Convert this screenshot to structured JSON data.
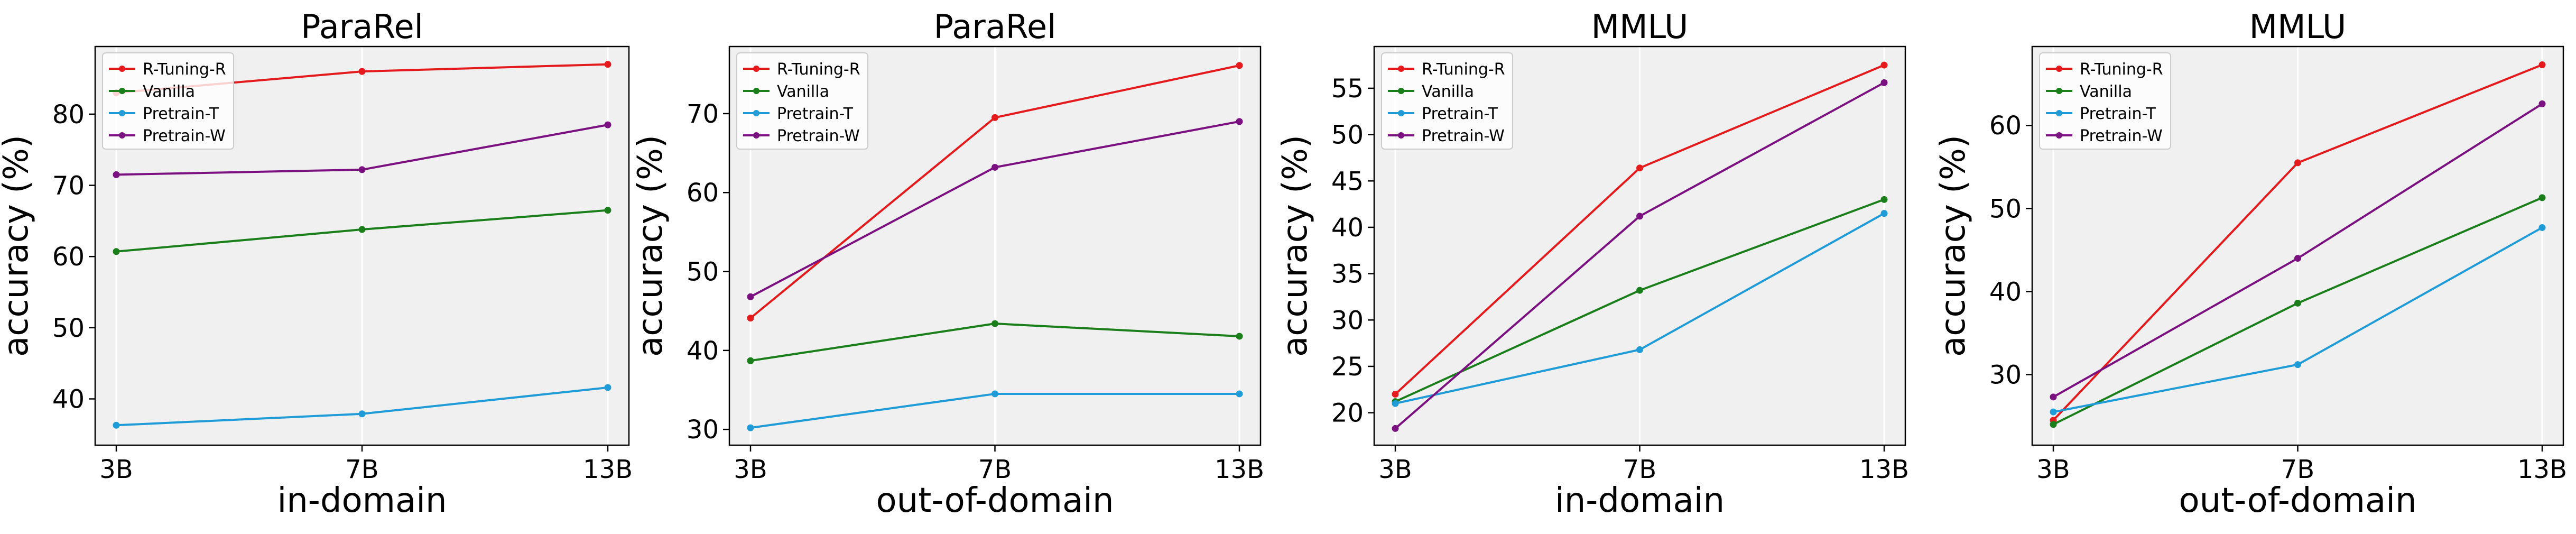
{
  "ylabel": "accuracy (%)",
  "chart_data": [
    {
      "type": "line",
      "title": "ParaRel",
      "xlabel": "in-domain",
      "ylabel": "accuracy (%)",
      "categories": [
        "3B",
        "7B",
        "13B"
      ],
      "ylim": [
        33.5,
        89.5
      ],
      "yticks": [
        40,
        50,
        60,
        70,
        80
      ],
      "grid": "vertical",
      "legend": "top-left",
      "series": [
        {
          "name": "R-Tuning-R",
          "color": "#e41a1c",
          "values": [
            83.0,
            86.0,
            87.0
          ]
        },
        {
          "name": "Vanilla",
          "color": "#1a7f1a",
          "values": [
            60.7,
            63.8,
            66.5
          ]
        },
        {
          "name": "Pretrain-T",
          "color": "#1f9bd7",
          "values": [
            36.3,
            37.9,
            41.6
          ]
        },
        {
          "name": "Pretrain-W",
          "color": "#7b1080",
          "values": [
            71.5,
            72.2,
            78.5
          ]
        }
      ]
    },
    {
      "type": "line",
      "title": "ParaRel",
      "xlabel": "out-of-domain",
      "ylabel": "accuracy (%)",
      "categories": [
        "3B",
        "7B",
        "13B"
      ],
      "ylim": [
        28.0,
        78.5
      ],
      "yticks": [
        30,
        40,
        50,
        60,
        70
      ],
      "grid": "vertical",
      "legend": "top-left",
      "series": [
        {
          "name": "R-Tuning-R",
          "color": "#e41a1c",
          "values": [
            44.1,
            69.5,
            76.1
          ]
        },
        {
          "name": "Vanilla",
          "color": "#1a7f1a",
          "values": [
            38.7,
            43.4,
            41.8
          ]
        },
        {
          "name": "Pretrain-T",
          "color": "#1f9bd7",
          "values": [
            30.2,
            34.5,
            34.5
          ]
        },
        {
          "name": "Pretrain-W",
          "color": "#7b1080",
          "values": [
            46.8,
            63.2,
            69.0
          ]
        }
      ]
    },
    {
      "type": "line",
      "title": "MMLU",
      "xlabel": "in-domain",
      "ylabel": "accuracy (%)",
      "categories": [
        "3B",
        "7B",
        "13B"
      ],
      "ylim": [
        16.5,
        59.5
      ],
      "yticks": [
        20,
        25,
        30,
        35,
        40,
        45,
        50,
        55
      ],
      "grid": "vertical",
      "legend": "top-left",
      "series": [
        {
          "name": "R-Tuning-R",
          "color": "#e41a1c",
          "values": [
            22.0,
            46.4,
            57.5
          ]
        },
        {
          "name": "Vanilla",
          "color": "#1a7f1a",
          "values": [
            21.2,
            33.2,
            43.0
          ]
        },
        {
          "name": "Pretrain-T",
          "color": "#1f9bd7",
          "values": [
            21.0,
            26.8,
            41.5
          ]
        },
        {
          "name": "Pretrain-W",
          "color": "#7b1080",
          "values": [
            18.3,
            41.2,
            55.6
          ]
        }
      ]
    },
    {
      "type": "line",
      "title": "MMLU",
      "xlabel": "out-of-domain",
      "ylabel": "accuracy (%)",
      "categories": [
        "3B",
        "7B",
        "13B"
      ],
      "ylim": [
        21.5,
        69.5
      ],
      "yticks": [
        30,
        40,
        50,
        60
      ],
      "grid": "vertical",
      "legend": "top-left",
      "series": [
        {
          "name": "R-Tuning-R",
          "color": "#e41a1c",
          "values": [
            24.5,
            55.5,
            67.3
          ]
        },
        {
          "name": "Vanilla",
          "color": "#1a7f1a",
          "values": [
            24.0,
            38.6,
            51.3
          ]
        },
        {
          "name": "Pretrain-T",
          "color": "#1f9bd7",
          "values": [
            25.5,
            31.2,
            47.7
          ]
        },
        {
          "name": "Pretrain-W",
          "color": "#7b1080",
          "values": [
            27.3,
            44.0,
            62.6
          ]
        }
      ]
    }
  ]
}
